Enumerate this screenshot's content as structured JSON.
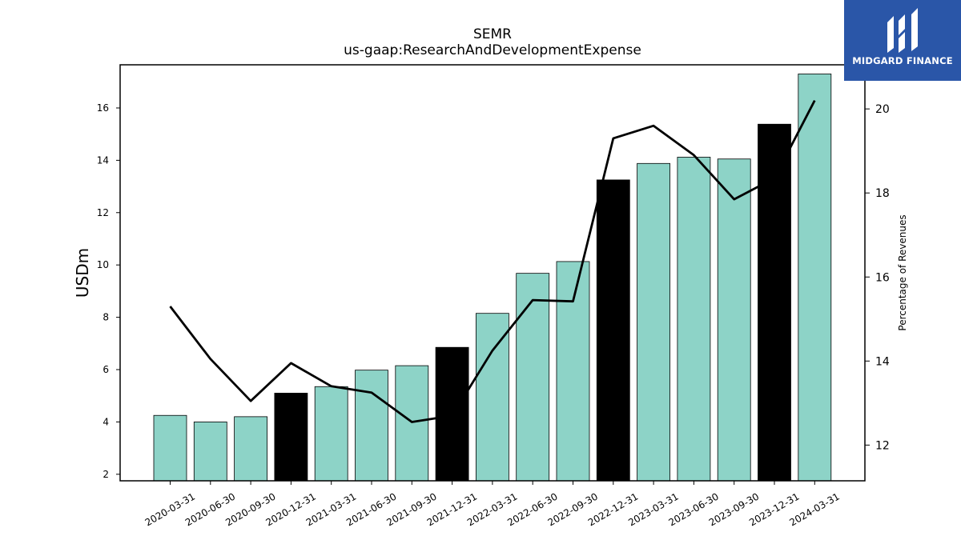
{
  "logo": {
    "text": "MIDGARD FINANCE",
    "icon": "midgard-logo-icon"
  },
  "colors": {
    "bar_default": "#8dd3c7",
    "bar_highlight": "#000000",
    "line": "#000000",
    "logo_bg": "#2a56a8"
  },
  "chart_data": {
    "type": "bar",
    "title": "SEMR",
    "subtitle": "us-gaap:ResearchAndDevelopmentExpense",
    "ylabel": "USDm",
    "y2label": "Percentage of Revenues",
    "categories": [
      "2020-03-31",
      "2020-06-30",
      "2020-09-30",
      "2020-12-31",
      "2021-03-31",
      "2021-06-30",
      "2021-09-30",
      "2021-12-31",
      "2022-03-31",
      "2022-06-30",
      "2022-09-30",
      "2022-12-31",
      "2023-03-31",
      "2023-06-30",
      "2023-09-30",
      "2023-12-31",
      "2024-03-31"
    ],
    "series": [
      {
        "values": [
          4.25,
          4.0,
          4.2,
          5.1,
          5.35,
          5.98,
          6.15,
          6.85,
          8.15,
          9.68,
          10.13,
          13.25,
          13.88,
          14.12,
          14.05,
          15.38,
          17.3
        ]
      },
      {
        "axis": "right",
        "type": "line",
        "values": [
          15.3,
          14.05,
          13.05,
          13.95,
          13.4,
          13.25,
          12.55,
          12.7,
          14.25,
          15.45,
          15.42,
          19.3,
          19.6,
          18.9,
          17.85,
          18.35,
          20.2
        ]
      }
    ],
    "highlight_categories": [
      "2020-12-31",
      "2021-12-31",
      "2022-12-31",
      "2023-12-31"
    ],
    "ylim": [
      1.75,
      17.65
    ],
    "y2lim": [
      11.15,
      21.05
    ],
    "yticks": [
      2,
      4,
      6,
      8,
      10,
      12,
      14,
      16
    ],
    "y2ticks": [
      12,
      14,
      16,
      18,
      20
    ],
    "grid": false,
    "legend": "none"
  }
}
